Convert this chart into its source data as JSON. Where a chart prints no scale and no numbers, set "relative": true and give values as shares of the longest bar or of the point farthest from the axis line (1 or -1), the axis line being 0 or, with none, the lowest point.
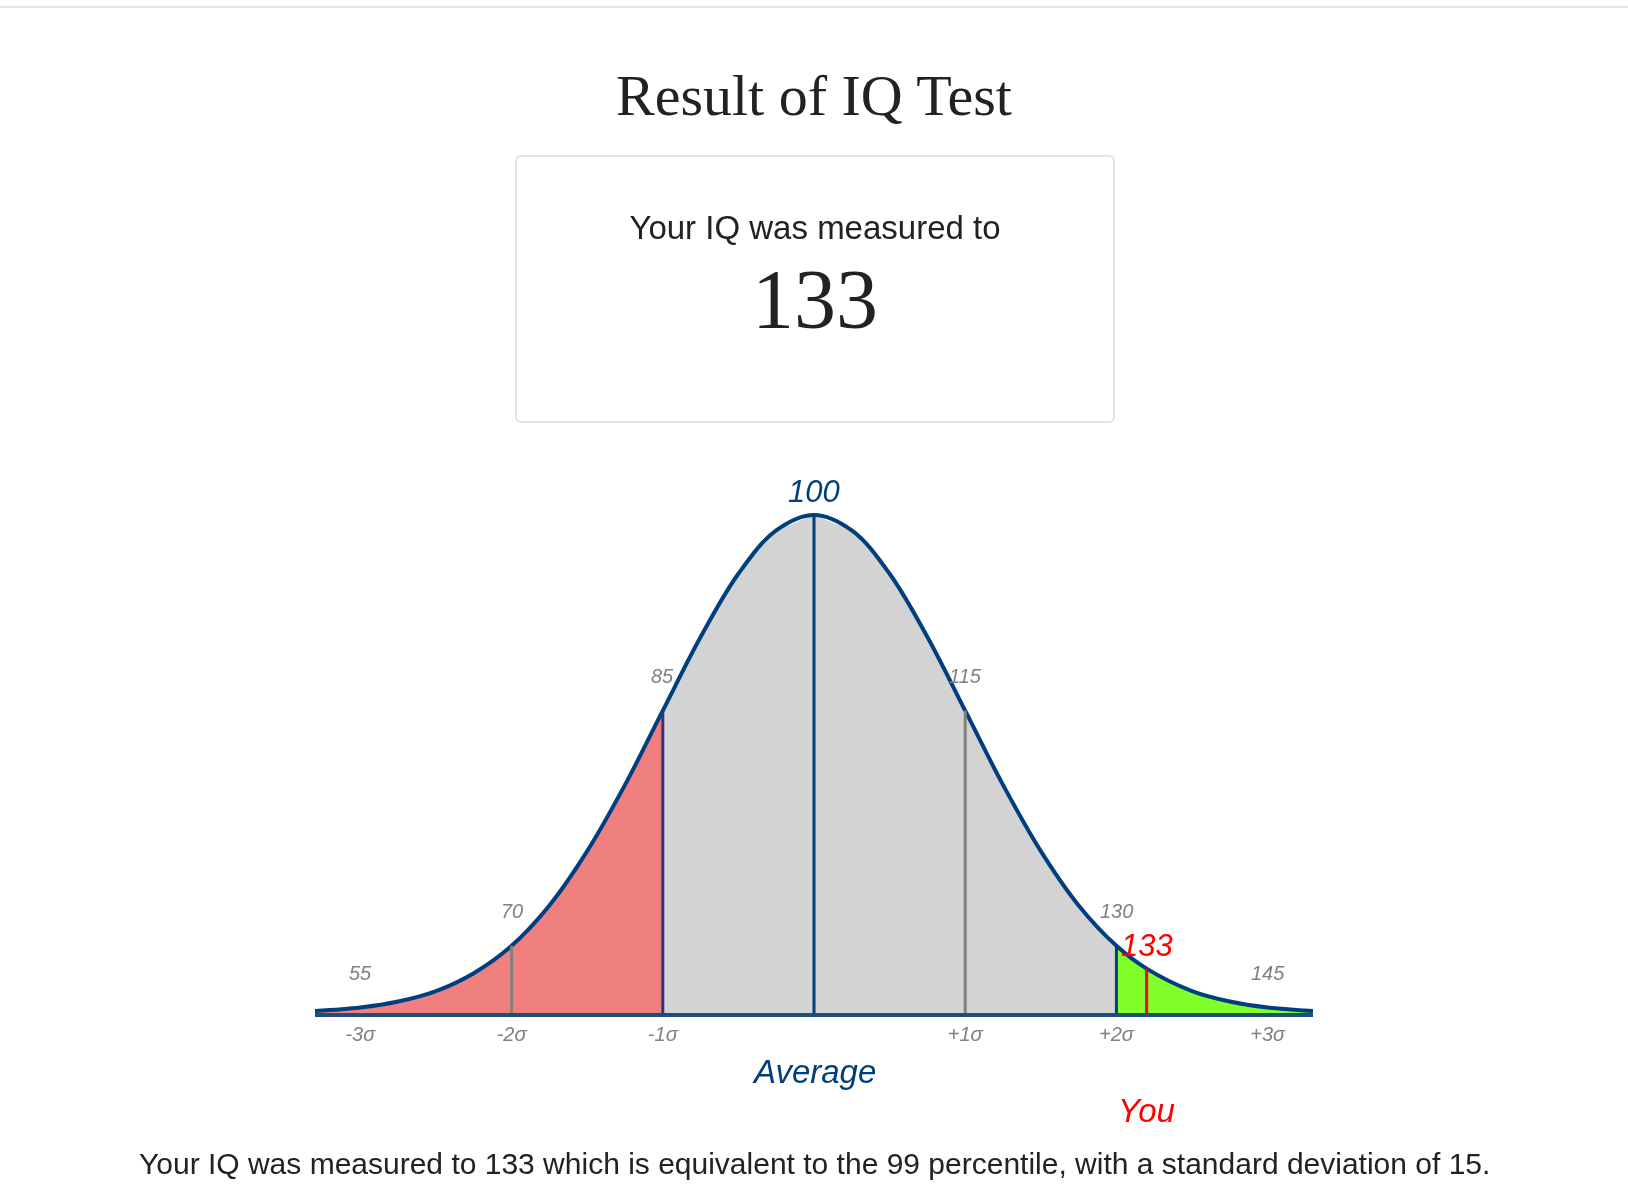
{
  "chart_data": [
    {
      "type": "other",
      "title": "Result of IQ Test",
      "annotations": [
        "Your IQ was measured to",
        "133"
      ]
    },
    {
      "type": "area",
      "relative": true,
      "xlim": [
        -3.3,
        3.3
      ],
      "xticks": [
        {
          "value": -3,
          "label": "-3σ"
        },
        {
          "value": -2,
          "label": "-2σ"
        },
        {
          "value": -1,
          "label": "-1σ"
        },
        {
          "value": 1,
          "label": "+1σ"
        },
        {
          "value": 2,
          "label": "+2σ"
        },
        {
          "value": 3,
          "label": "+3σ"
        }
      ],
      "series": [
        {
          "type": "area",
          "color": "#f08080",
          "x": [
            -3.3,
            -3,
            -2.75,
            -2.5,
            -2.25,
            -2,
            -1.75,
            -1.5,
            -1.25,
            -1
          ],
          "values": [
            0.004,
            0.011,
            0.023,
            0.044,
            0.08,
            0.135,
            0.216,
            0.325,
            0.458,
            0.607
          ]
        },
        {
          "type": "area",
          "color": "#d3d3d3",
          "x": [
            -1,
            -0.75,
            -0.5,
            -0.25,
            0,
            0.25,
            0.5,
            0.75,
            1,
            1.25,
            1.5,
            1.75,
            2
          ],
          "values": [
            0.607,
            0.755,
            0.882,
            0.969,
            1,
            0.969,
            0.882,
            0.755,
            0.607,
            0.458,
            0.325,
            0.216,
            0.135
          ]
        },
        {
          "type": "area",
          "color": "#80ff2a",
          "x": [
            2,
            2.2,
            2.5,
            2.75,
            3,
            3.3
          ],
          "values": [
            0.135,
            0.089,
            0.044,
            0.023,
            0.011,
            0.004
          ]
        },
        {
          "type": "line",
          "color": "#003f7f",
          "x": [
            -3.3,
            -3,
            -2.75,
            -2.5,
            -2.25,
            -2,
            -1.75,
            -1.5,
            -1.25,
            -1,
            -0.75,
            -0.5,
            -0.25,
            0,
            0.25,
            0.5,
            0.75,
            1,
            1.25,
            1.5,
            1.75,
            2,
            2.2,
            2.5,
            2.75,
            3,
            3.3
          ],
          "values": [
            0.004,
            0.011,
            0.023,
            0.044,
            0.08,
            0.135,
            0.216,
            0.325,
            0.458,
            0.607,
            0.755,
            0.882,
            0.969,
            1,
            0.969,
            0.882,
            0.755,
            0.607,
            0.458,
            0.325,
            0.216,
            0.135,
            0.089,
            0.044,
            0.023,
            0.011,
            0.004
          ]
        }
      ],
      "ref_lines": [
        {
          "axis": "x",
          "value": -2,
          "color": "#808080"
        },
        {
          "axis": "x",
          "value": -1,
          "color": "#3b2f7f"
        },
        {
          "axis": "x",
          "value": 0,
          "label": "Average",
          "color": "#003f7f"
        },
        {
          "axis": "x",
          "value": 1,
          "color": "#808080"
        },
        {
          "axis": "x",
          "value": 2,
          "color": "#003f7f"
        },
        {
          "axis": "x",
          "value": 2.2,
          "label": "You",
          "color": "#ff0000"
        }
      ],
      "annotations": [
        {
          "text": "55",
          "x": -3,
          "y": 0.011
        },
        {
          "text": "70",
          "x": -2,
          "y": 0.135
        },
        {
          "text": "85",
          "x": -1,
          "y": 0.607
        },
        {
          "text": "100",
          "x": 0,
          "y": 1
        },
        {
          "text": "115",
          "x": 1,
          "y": 0.607
        },
        {
          "text": "130",
          "x": 2,
          "y": 0.135
        },
        {
          "text": "133",
          "x": 2.2,
          "y": 0.089
        },
        {
          "text": "145",
          "x": 3,
          "y": 0.011
        },
        "Your IQ was measured to 133 which is equivalent to the 99 percentile, with a standard deviation of 15."
      ]
    }
  ]
}
